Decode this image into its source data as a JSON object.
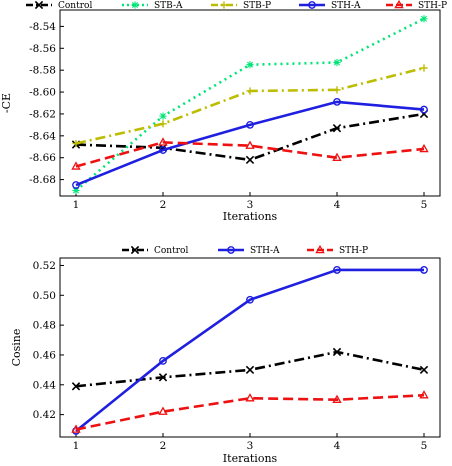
{
  "chart_data": [
    {
      "type": "line",
      "x": [
        1,
        2,
        3,
        4,
        5
      ],
      "xlabel": "Iterations",
      "ylabel": "-CE",
      "xticks": [
        "1",
        "2",
        "3",
        "4",
        "5"
      ],
      "yticks": [
        "-8.68",
        "-8.66",
        "-8.64",
        "-8.62",
        "-8.60",
        "-8.58",
        "-8.56",
        "-8.54"
      ],
      "ylim": [
        -8.695,
        -8.525
      ],
      "grid": false,
      "legend_position": "top",
      "series": [
        {
          "name": "Control",
          "values": [
            -8.648,
            -8.651,
            -8.662,
            -8.633,
            -8.62
          ],
          "color": "#000000",
          "dash": "10,4,2,4",
          "marker": "x"
        },
        {
          "name": "STB-A",
          "values": [
            -8.69,
            -8.622,
            -8.575,
            -8.573,
            -8.533
          ],
          "color": "#00e676",
          "dash": "2,4",
          "marker": "asterisk"
        },
        {
          "name": "STB-P",
          "values": [
            -8.647,
            -8.629,
            -8.599,
            -8.598,
            -8.578
          ],
          "color": "#bcbd00",
          "dash": "10,4,2,4",
          "marker": "plus"
        },
        {
          "name": "STH-A",
          "values": [
            -8.685,
            -8.653,
            -8.63,
            -8.609,
            -8.616
          ],
          "color": "#1f1fe0",
          "dash": "",
          "marker": "circle"
        },
        {
          "name": "STH-P",
          "values": [
            -8.668,
            -8.646,
            -8.649,
            -8.66,
            -8.652
          ],
          "color": "#ee1111",
          "dash": "10,5",
          "marker": "triangle"
        }
      ]
    },
    {
      "type": "line",
      "x": [
        1,
        2,
        3,
        4,
        5
      ],
      "xlabel": "Iterations",
      "ylabel": "Cosine",
      "xticks": [
        "1",
        "2",
        "3",
        "4",
        "5"
      ],
      "yticks": [
        "0.42",
        "0.44",
        "0.46",
        "0.48",
        "0.50",
        "0.52"
      ],
      "ylim": [
        0.405,
        0.525
      ],
      "grid": false,
      "legend_position": "top",
      "series": [
        {
          "name": "Control",
          "values": [
            0.439,
            0.445,
            0.45,
            0.462,
            0.45
          ],
          "color": "#000000",
          "dash": "10,4,2,4",
          "marker": "x"
        },
        {
          "name": "STH-A",
          "values": [
            0.409,
            0.456,
            0.497,
            0.517,
            0.517
          ],
          "color": "#1f1fe0",
          "dash": "",
          "marker": "circle"
        },
        {
          "name": "STH-P",
          "values": [
            0.41,
            0.422,
            0.431,
            0.43,
            0.433
          ],
          "color": "#ee1111",
          "dash": "10,5",
          "marker": "triangle"
        }
      ]
    }
  ]
}
